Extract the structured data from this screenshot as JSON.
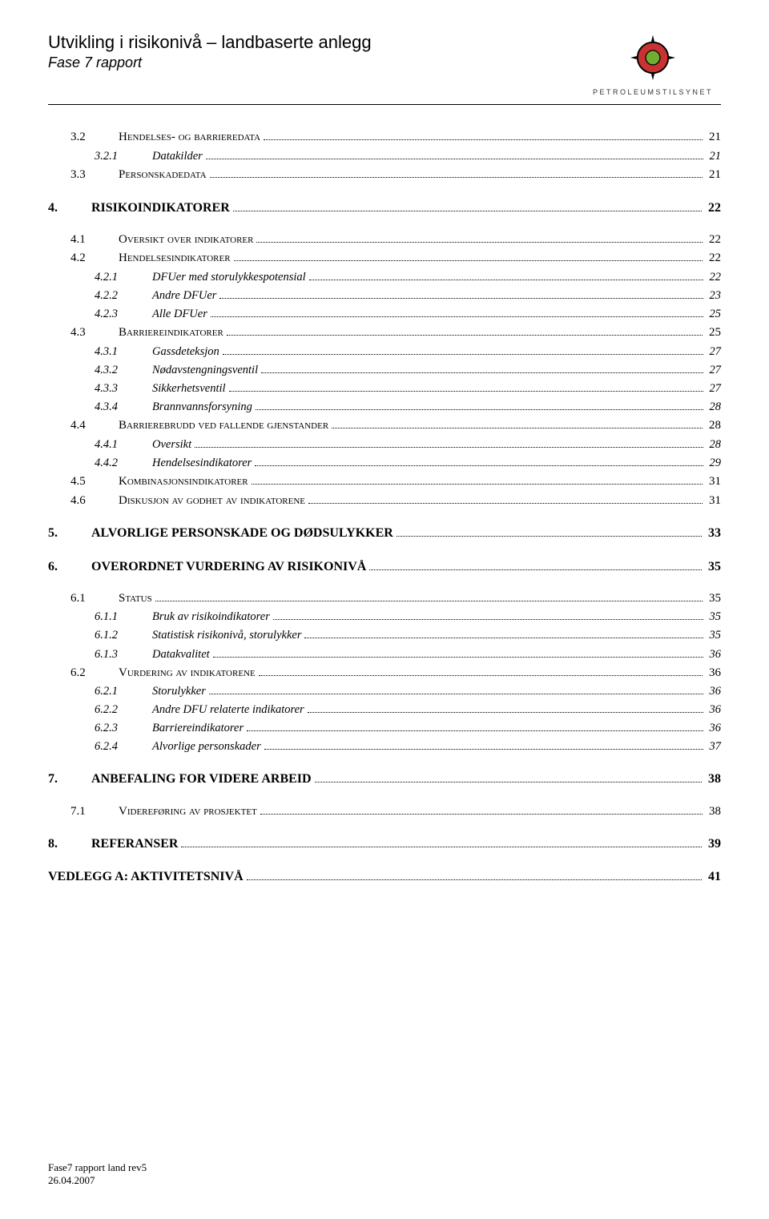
{
  "header": {
    "title": "Utvikling i risikonivå – landbaserte anlegg",
    "subtitle": "Fase 7 rapport",
    "logo_text": "PETROLEUMSTILSYNET",
    "logo_colors": {
      "outer_ring": "#000000",
      "fill_ring": "#c83232",
      "center": "#6fae2e",
      "pointer": "#000000"
    }
  },
  "toc": [
    {
      "lvl": 1,
      "num": "3.2",
      "label": "Hendelses- og barrieredata",
      "page": "21"
    },
    {
      "lvl": 2,
      "num": "3.2.1",
      "label": "Datakilder",
      "page": "21"
    },
    {
      "lvl": 1,
      "num": "3.3",
      "label": "Personskadedata",
      "page": "21"
    },
    {
      "lvl": 0,
      "num": "4.",
      "label": "RISIKOINDIKATORER",
      "page": "22",
      "gap_before": true
    },
    {
      "lvl": 1,
      "num": "4.1",
      "label": "Oversikt over indikatorer",
      "page": "22",
      "gap_before": true
    },
    {
      "lvl": 1,
      "num": "4.2",
      "label": "Hendelsesindikatorer",
      "page": "22"
    },
    {
      "lvl": 2,
      "num": "4.2.1",
      "label": "DFUer med storulykkespotensial",
      "page": "22"
    },
    {
      "lvl": 2,
      "num": "4.2.2",
      "label": "Andre DFUer",
      "page": "23"
    },
    {
      "lvl": 2,
      "num": "4.2.3",
      "label": "Alle DFUer",
      "page": "25"
    },
    {
      "lvl": 1,
      "num": "4.3",
      "label": "Barriereindikatorer",
      "page": "25"
    },
    {
      "lvl": 2,
      "num": "4.3.1",
      "label": "Gassdeteksjon",
      "page": "27"
    },
    {
      "lvl": 2,
      "num": "4.3.2",
      "label": "Nødavstengningsventil",
      "page": "27"
    },
    {
      "lvl": 2,
      "num": "4.3.3",
      "label": "Sikkerhetsventil",
      "page": "27"
    },
    {
      "lvl": 2,
      "num": "4.3.4",
      "label": "Brannvannsforsyning",
      "page": "28"
    },
    {
      "lvl": 1,
      "num": "4.4",
      "label": "Barrierebrudd ved fallende gjenstander",
      "page": "28"
    },
    {
      "lvl": 2,
      "num": "4.4.1",
      "label": "Oversikt",
      "page": "28"
    },
    {
      "lvl": 2,
      "num": "4.4.2",
      "label": "Hendelsesindikatorer",
      "page": "29"
    },
    {
      "lvl": 1,
      "num": "4.5",
      "label": "Kombinasjonsindikatorer",
      "page": "31"
    },
    {
      "lvl": 1,
      "num": "4.6",
      "label": "Diskusjon av godhet av indikatorene",
      "page": "31"
    },
    {
      "lvl": 0,
      "num": "5.",
      "label": "ALVORLIGE PERSONSKADE OG DØDSULYKKER",
      "page": "33",
      "gap_before": true
    },
    {
      "lvl": 0,
      "num": "6.",
      "label": "OVERORDNET VURDERING AV RISIKONIVÅ",
      "page": "35",
      "gap_before": true
    },
    {
      "lvl": 1,
      "num": "6.1",
      "label": "Status",
      "page": "35",
      "gap_before": true
    },
    {
      "lvl": 2,
      "num": "6.1.1",
      "label": "Bruk av risikoindikatorer",
      "page": "35"
    },
    {
      "lvl": 2,
      "num": "6.1.2",
      "label": "Statistisk risikonivå, storulykker",
      "page": "35"
    },
    {
      "lvl": 2,
      "num": "6.1.3",
      "label": "Datakvalitet",
      "page": "36"
    },
    {
      "lvl": 1,
      "num": "6.2",
      "label": "Vurdering av indikatorene",
      "page": "36"
    },
    {
      "lvl": 2,
      "num": "6.2.1",
      "label": "Storulykker",
      "page": "36"
    },
    {
      "lvl": 2,
      "num": "6.2.2",
      "label": "Andre DFU relaterte indikatorer",
      "page": "36"
    },
    {
      "lvl": 2,
      "num": "6.2.3",
      "label": "Barriereindikatorer",
      "page": "36"
    },
    {
      "lvl": 2,
      "num": "6.2.4",
      "label": "Alvorlige personskader",
      "page": "37"
    },
    {
      "lvl": 0,
      "num": "7.",
      "label": "ANBEFALING FOR VIDERE ARBEID",
      "page": "38",
      "gap_before": true
    },
    {
      "lvl": 1,
      "num": "7.1",
      "label": "Videreføring av prosjektet",
      "page": "38",
      "gap_before": true
    },
    {
      "lvl": 0,
      "num": "8.",
      "label": "REFERANSER",
      "page": "39",
      "gap_before": true
    },
    {
      "lvl": 0,
      "num": "",
      "label": "VEDLEGG A: AKTIVITETSNIVÅ",
      "page": "41",
      "gap_before": true,
      "no_num": true
    }
  ],
  "footer": {
    "line1": "Fase7 rapport land rev5",
    "line2": "26.04.2007"
  }
}
